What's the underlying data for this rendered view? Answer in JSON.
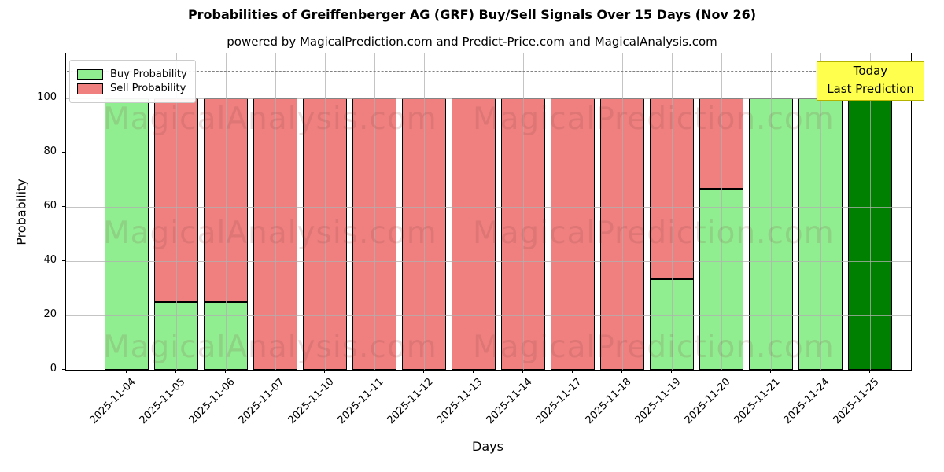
{
  "title": "Probabilities of Greiffenberger AG (GRF) Buy/Sell Signals Over 15 Days (Nov 26)",
  "subtitle": "powered by MagicalPrediction.com and Predict-Price.com and MagicalAnalysis.com",
  "legend": {
    "items": [
      {
        "label": "Buy Probability",
        "color": "#90ee90"
      },
      {
        "label": "Sell Probability",
        "color": "#f08080"
      }
    ]
  },
  "annotation": {
    "line1": "Today",
    "line2": "Last Prediction",
    "bg_color": "#ffff4d",
    "border_color": "#b3b300"
  },
  "watermarks": {
    "left_text": "MagicalAnalysis.com",
    "right_text": "MagicalPrediction.com"
  },
  "axes": {
    "ylabel": "Probability",
    "xlabel": "Days",
    "yticks": [
      0,
      20,
      40,
      60,
      80,
      100
    ],
    "ylim": [
      0,
      116.5
    ],
    "dashed_line_y": 110,
    "grid": true,
    "legend_position": "upper left"
  },
  "chart_data": {
    "type": "bar",
    "stacked": true,
    "title": "Probabilities of Greiffenberger AG (GRF) Buy/Sell Signals Over 15 Days (Nov 26)",
    "xlabel": "Days",
    "ylabel": "Probability",
    "ylim": [
      0,
      116.5
    ],
    "categories": [
      "2025-11-04",
      "2025-11-05",
      "2025-11-06",
      "2025-11-07",
      "2025-11-10",
      "2025-11-11",
      "2025-11-12",
      "2025-11-13",
      "2025-11-14",
      "2025-11-17",
      "2025-11-18",
      "2025-11-19",
      "2025-11-20",
      "2025-11-21",
      "2025-11-24",
      "2025-11-25"
    ],
    "series": [
      {
        "name": "Buy Probability",
        "color": "#90ee90",
        "values": [
          100,
          25,
          25,
          0,
          0,
          0,
          0,
          0,
          0,
          0,
          0,
          33.3,
          66.7,
          100,
          100,
          100
        ]
      },
      {
        "name": "Sell Probability",
        "color": "#f08080",
        "values": [
          0,
          75,
          75,
          100,
          100,
          100,
          100,
          100,
          100,
          100,
          100,
          66.7,
          33.3,
          0,
          0,
          0
        ]
      }
    ],
    "today_bar": {
      "category": "2025-11-25",
      "index": 15,
      "color": "#008000"
    },
    "dashed_reference_line": 110
  }
}
